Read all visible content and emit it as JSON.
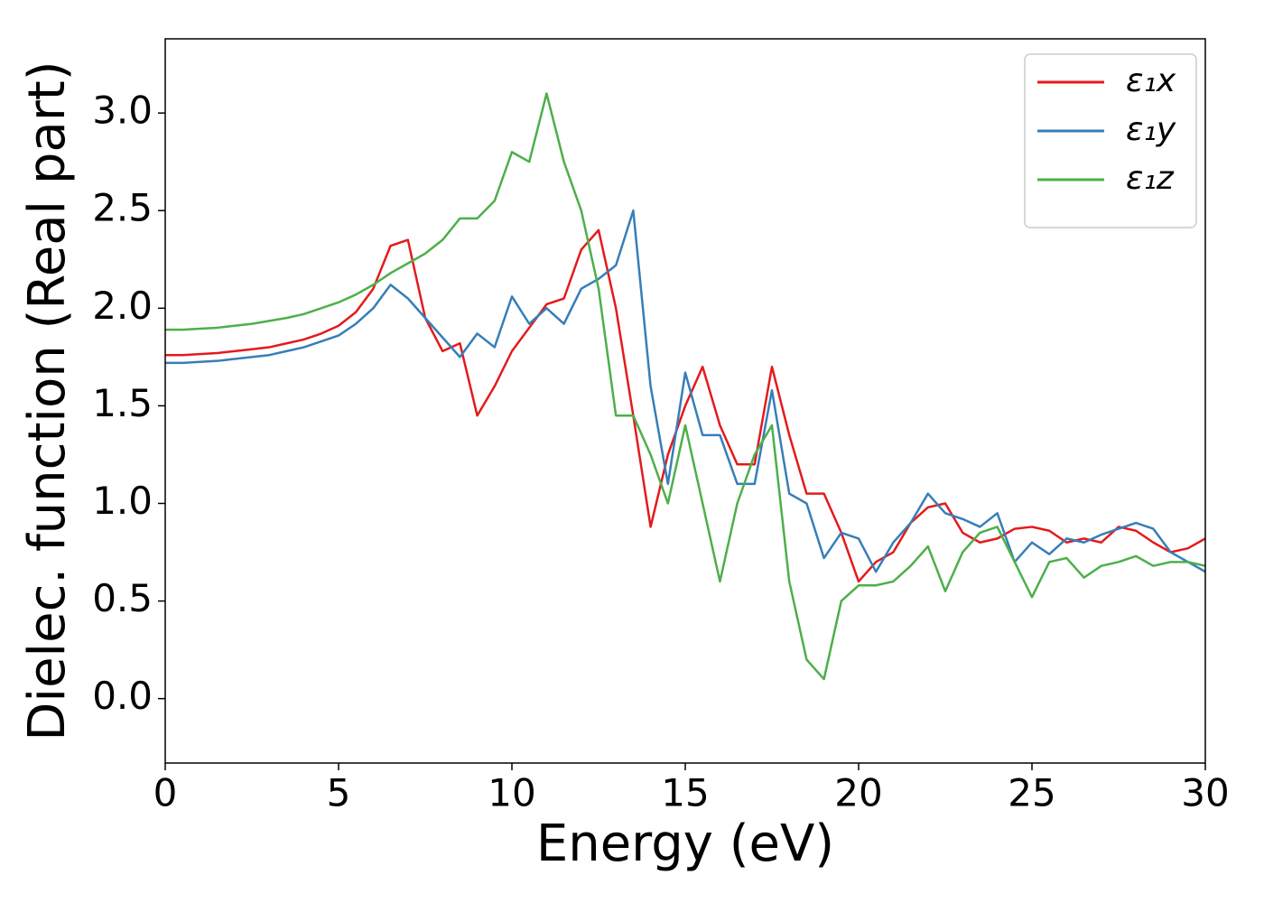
{
  "chart_data": {
    "type": "line",
    "xlabel": "Energy (eV)",
    "ylabel": "Dielec. function (Real part)",
    "x": [
      0,
      0.5,
      1,
      1.5,
      2,
      2.5,
      3,
      3.5,
      4,
      4.5,
      5,
      5.5,
      6,
      6.5,
      7,
      7.5,
      8,
      8.5,
      9,
      9.5,
      10,
      10.5,
      11,
      11.5,
      12,
      12.5,
      13,
      13.5,
      14,
      14.5,
      15,
      15.5,
      16,
      16.5,
      17,
      17.5,
      18,
      18.5,
      19,
      19.5,
      20,
      20.5,
      21,
      21.5,
      22,
      22.5,
      23,
      23.5,
      24,
      24.5,
      25,
      25.5,
      26,
      26.5,
      27,
      27.5,
      28,
      28.5,
      29,
      29.5,
      30
    ],
    "series": [
      {
        "name": "ε₁x",
        "color": "#e41a1c",
        "values": [
          1.76,
          1.76,
          1.765,
          1.77,
          1.78,
          1.79,
          1.8,
          1.82,
          1.84,
          1.87,
          1.91,
          1.98,
          2.1,
          2.32,
          2.35,
          1.95,
          1.78,
          1.82,
          1.45,
          1.6,
          1.78,
          1.9,
          2.02,
          2.05,
          2.3,
          2.4,
          2.0,
          1.45,
          0.88,
          1.25,
          1.5,
          1.7,
          1.4,
          1.2,
          1.2,
          1.7,
          1.35,
          1.05,
          1.05,
          0.85,
          0.6,
          0.7,
          0.75,
          0.9,
          0.98,
          1.0,
          0.85,
          0.8,
          0.82,
          0.87,
          0.88,
          0.86,
          0.8,
          0.82,
          0.8,
          0.88,
          0.86,
          0.8,
          0.75,
          0.77,
          0.82
        ]
      },
      {
        "name": "ε₁y",
        "color": "#377eb8",
        "values": [
          1.72,
          1.72,
          1.725,
          1.73,
          1.74,
          1.75,
          1.76,
          1.78,
          1.8,
          1.83,
          1.86,
          1.92,
          2.0,
          2.12,
          2.05,
          1.95,
          1.85,
          1.75,
          1.87,
          1.8,
          2.06,
          1.92,
          2.0,
          1.92,
          2.1,
          2.15,
          2.22,
          2.5,
          1.6,
          1.1,
          1.67,
          1.35,
          1.35,
          1.1,
          1.1,
          1.58,
          1.05,
          1.0,
          0.72,
          0.85,
          0.82,
          0.65,
          0.8,
          0.9,
          1.05,
          0.95,
          0.92,
          0.88,
          0.95,
          0.7,
          0.8,
          0.74,
          0.82,
          0.8,
          0.84,
          0.87,
          0.9,
          0.87,
          0.75,
          0.7,
          0.65
        ]
      },
      {
        "name": "ε₁z",
        "color": "#4daf4a",
        "values": [
          1.89,
          1.89,
          1.895,
          1.9,
          1.91,
          1.92,
          1.935,
          1.95,
          1.97,
          2.0,
          2.03,
          2.07,
          2.12,
          2.18,
          2.23,
          2.28,
          2.35,
          2.46,
          2.46,
          2.55,
          2.8,
          2.75,
          3.1,
          2.75,
          2.5,
          2.1,
          1.45,
          1.45,
          1.25,
          1.0,
          1.4,
          1.0,
          0.6,
          1.0,
          1.25,
          1.4,
          0.6,
          0.2,
          0.1,
          0.5,
          0.58,
          0.58,
          0.6,
          0.68,
          0.78,
          0.55,
          0.75,
          0.85,
          0.88,
          0.7,
          0.52,
          0.7,
          0.72,
          0.62,
          0.68,
          0.7,
          0.73,
          0.68,
          0.7,
          0.7,
          0.68
        ]
      }
    ],
    "xlim": [
      0,
      30
    ],
    "xticks": [
      0,
      5,
      10,
      15,
      20,
      25,
      30
    ],
    "ylim": [
      -0.33,
      3.38
    ],
    "yticks": [
      {
        "value": 0,
        "label": "0.0"
      },
      0.5,
      {
        "value": 1,
        "label": "1.0"
      },
      1.5,
      {
        "value": 2,
        "label": "2.0"
      },
      2.5,
      {
        "value": 3,
        "label": "3.0"
      }
    ],
    "grid": false,
    "legend": "upper right"
  }
}
